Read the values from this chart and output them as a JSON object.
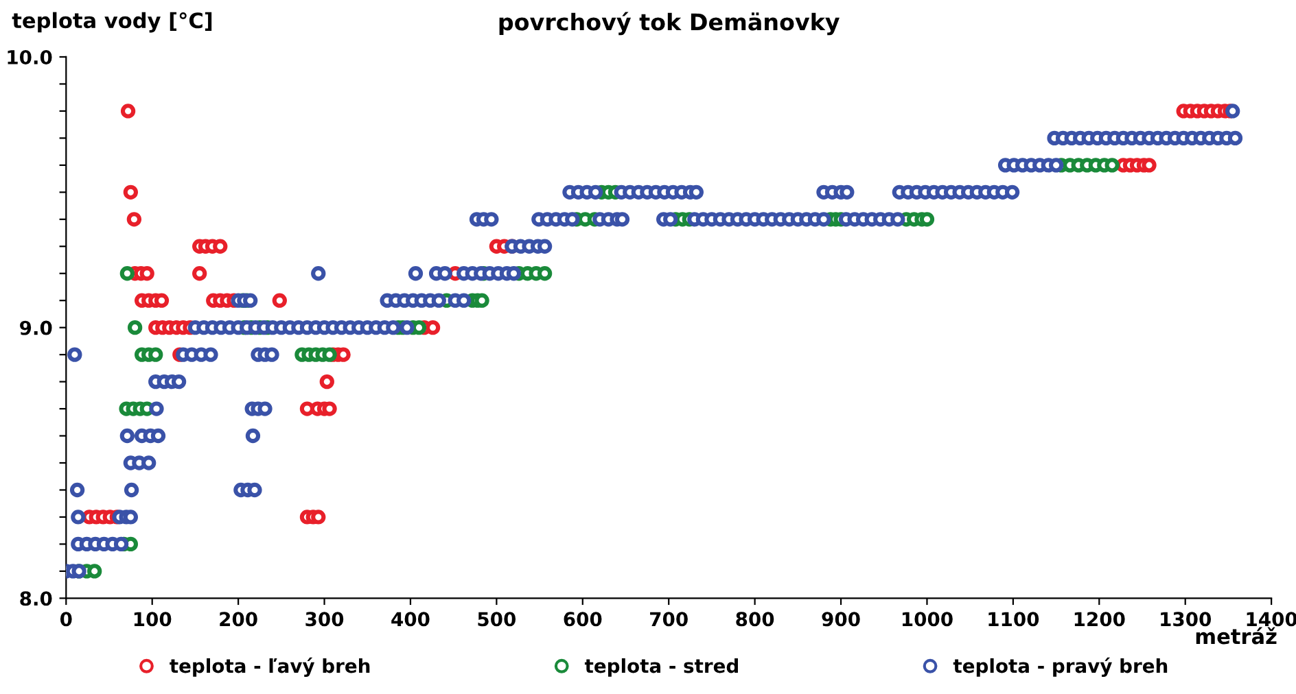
{
  "chart_data": {
    "type": "scatter",
    "title": "povrchový tok Demänovky",
    "xlabel": "metráž",
    "ylabel": "teplota vody [°C]",
    "xlim": [
      0,
      1400
    ],
    "xticks": [
      0,
      100,
      200,
      300,
      400,
      500,
      600,
      700,
      800,
      900,
      1000,
      1100,
      1200,
      1300,
      1400
    ],
    "ylim": [
      8.0,
      10.0
    ],
    "yticks": [
      {
        "value": 8.0,
        "label": "8.0"
      },
      {
        "value": 8.1,
        "label": null
      },
      {
        "value": 8.2,
        "label": null
      },
      {
        "value": 8.3,
        "label": null
      },
      {
        "value": 8.4,
        "label": null
      },
      {
        "value": 8.5,
        "label": null
      },
      {
        "value": 8.6,
        "label": null
      },
      {
        "value": 8.7,
        "label": null
      },
      {
        "value": 8.8,
        "label": null
      },
      {
        "value": 8.9,
        "label": null
      },
      {
        "value": 9.0,
        "label": "9.0"
      },
      {
        "value": 9.1,
        "label": null
      },
      {
        "value": 9.2,
        "label": null
      },
      {
        "value": 9.3,
        "label": null
      },
      {
        "value": 9.4,
        "label": null
      },
      {
        "value": 9.5,
        "label": null
      },
      {
        "value": 9.6,
        "label": null
      },
      {
        "value": 9.7,
        "label": null
      },
      {
        "value": 9.8,
        "label": null
      },
      {
        "value": 9.9,
        "label": null
      },
      {
        "value": 10.0,
        "label": "10.0"
      }
    ],
    "marker": "circle",
    "legend": "bottom",
    "grid": false,
    "series": [
      {
        "name": "teplota - ľavý breh",
        "color": "#e8202a",
        "x": [
          27,
          35,
          43,
          51,
          59,
          280,
          287,
          293,
          280,
          292,
          300,
          306,
          303,
          132,
          310,
          316,
          322,
          104,
          112,
          120,
          128,
          136,
          144,
          416,
          426,
          88,
          96,
          104,
          111,
          171,
          179,
          187,
          195,
          248,
          80,
          87,
          94,
          155,
          452,
          155,
          162,
          170,
          179,
          500,
          509,
          518,
          79,
          75,
          72,
          1298,
          1306,
          1314,
          1322,
          1330,
          1338,
          1346,
          1352,
          1228,
          1236,
          1244,
          1252,
          1258
        ],
        "values": [
          8.3,
          8.3,
          8.3,
          8.3,
          8.3,
          8.3,
          8.3,
          8.3,
          8.7,
          8.7,
          8.7,
          8.7,
          8.8,
          8.9,
          8.9,
          8.9,
          8.9,
          9.0,
          9.0,
          9.0,
          9.0,
          9.0,
          9.0,
          9.0,
          9.0,
          9.1,
          9.1,
          9.1,
          9.1,
          9.1,
          9.1,
          9.1,
          9.1,
          9.1,
          9.2,
          9.2,
          9.2,
          9.2,
          9.2,
          9.3,
          9.3,
          9.3,
          9.3,
          9.3,
          9.3,
          9.3,
          9.4,
          9.5,
          9.8,
          9.8,
          9.8,
          9.8,
          9.8,
          9.8,
          9.8,
          9.8,
          9.8,
          9.6,
          9.6,
          9.6,
          9.6,
          9.6
        ]
      },
      {
        "name": "teplota - stred",
        "color": "#1a8a3a",
        "x": [
          15,
          24,
          33,
          67,
          75,
          70,
          78,
          86,
          94,
          71,
          80,
          88,
          96,
          104,
          205,
          210,
          207,
          215,
          225,
          234,
          274,
          282,
          290,
          298,
          306,
          386,
          391,
          403,
          410,
          442,
          472,
          478,
          483,
          485,
          526,
          536,
          546,
          556,
          593,
          603,
          614,
          708,
          716,
          724,
          888,
          894,
          900,
          976,
          985,
          994,
          1000,
          622,
          630,
          638,
          1156,
          1166,
          1176,
          1186,
          1196,
          1206,
          1215
        ],
        "values": [
          8.1,
          8.1,
          8.1,
          8.2,
          8.2,
          8.7,
          8.7,
          8.7,
          8.7,
          9.2,
          9.0,
          8.9,
          8.9,
          8.9,
          9.1,
          9.1,
          9.0,
          9.0,
          9.0,
          9.0,
          8.9,
          8.9,
          8.9,
          8.9,
          8.9,
          9.0,
          9.0,
          9.0,
          9.0,
          9.1,
          9.1,
          9.1,
          9.1,
          9.2,
          9.2,
          9.2,
          9.2,
          9.2,
          9.4,
          9.4,
          9.4,
          9.4,
          9.4,
          9.4,
          9.4,
          9.4,
          9.4,
          9.4,
          9.4,
          9.4,
          9.4,
          9.5,
          9.5,
          9.5,
          9.6,
          9.6,
          9.6,
          9.6,
          9.6,
          9.6,
          9.6
        ]
      },
      {
        "name": "teplota - pravý breh",
        "color": "#3a52a8",
        "x": [
          0,
          8,
          15,
          10,
          13,
          14,
          14,
          24,
          34,
          44,
          54,
          64,
          62,
          70,
          75,
          71,
          76,
          75,
          85,
          96,
          88,
          98,
          107,
          105,
          104,
          114,
          123,
          131,
          136,
          146,
          157,
          168,
          223,
          231,
          239,
          150,
          160,
          170,
          180,
          190,
          200,
          210,
          220,
          230,
          240,
          250,
          260,
          270,
          280,
          290,
          300,
          310,
          320,
          330,
          340,
          350,
          360,
          370,
          380,
          396,
          200,
          207,
          214,
          373,
          383,
          393,
          403,
          413,
          423,
          433,
          452,
          462,
          293,
          406,
          430,
          440,
          462,
          472,
          482,
          492,
          502,
          512,
          520,
          518,
          528,
          538,
          548,
          556,
          477,
          485,
          494,
          549,
          559,
          569,
          579,
          588,
          620,
          630,
          640,
          646,
          694,
          702,
          730,
          740,
          750,
          760,
          770,
          780,
          790,
          800,
          810,
          820,
          830,
          840,
          850,
          860,
          870,
          880,
          906,
          916,
          926,
          936,
          946,
          956,
          966,
          585,
          595,
          605,
          615,
          645,
          655,
          665,
          675,
          685,
          695,
          705,
          715,
          725,
          732,
          880,
          890,
          900,
          907,
          968,
          978,
          988,
          998,
          1008,
          1018,
          1028,
          1038,
          1048,
          1058,
          1068,
          1078,
          1088,
          1099,
          1091,
          1101,
          1111,
          1121,
          1131,
          1141,
          1150,
          1148,
          1158,
          1168,
          1178,
          1188,
          1198,
          1208,
          1218,
          1228,
          1238,
          1248,
          1258,
          1268,
          1278,
          1288,
          1298,
          1308,
          1318,
          1328,
          1338,
          1348,
          1358,
          1355,
          203,
          211,
          219,
          216,
          223,
          231,
          217
        ],
        "values": [
          8.1,
          8.1,
          8.1,
          8.9,
          8.4,
          8.3,
          8.2,
          8.2,
          8.2,
          8.2,
          8.2,
          8.2,
          8.3,
          8.3,
          8.3,
          8.6,
          8.4,
          8.5,
          8.5,
          8.5,
          8.6,
          8.6,
          8.6,
          8.7,
          8.8,
          8.8,
          8.8,
          8.8,
          8.9,
          8.9,
          8.9,
          8.9,
          8.9,
          8.9,
          8.9,
          9.0,
          9.0,
          9.0,
          9.0,
          9.0,
          9.0,
          9.0,
          9.0,
          9.0,
          9.0,
          9.0,
          9.0,
          9.0,
          9.0,
          9.0,
          9.0,
          9.0,
          9.0,
          9.0,
          9.0,
          9.0,
          9.0,
          9.0,
          9.0,
          9.0,
          9.1,
          9.1,
          9.1,
          9.1,
          9.1,
          9.1,
          9.1,
          9.1,
          9.1,
          9.1,
          9.1,
          9.1,
          9.2,
          9.2,
          9.2,
          9.2,
          9.2,
          9.2,
          9.2,
          9.2,
          9.2,
          9.2,
          9.2,
          9.3,
          9.3,
          9.3,
          9.3,
          9.3,
          9.4,
          9.4,
          9.4,
          9.4,
          9.4,
          9.4,
          9.4,
          9.4,
          9.4,
          9.4,
          9.4,
          9.4,
          9.4,
          9.4,
          9.4,
          9.4,
          9.4,
          9.4,
          9.4,
          9.4,
          9.4,
          9.4,
          9.4,
          9.4,
          9.4,
          9.4,
          9.4,
          9.4,
          9.4,
          9.4,
          9.4,
          9.4,
          9.4,
          9.4,
          9.4,
          9.4,
          9.4,
          9.5,
          9.5,
          9.5,
          9.5,
          9.5,
          9.5,
          9.5,
          9.5,
          9.5,
          9.5,
          9.5,
          9.5,
          9.5,
          9.5,
          9.5,
          9.5,
          9.5,
          9.5,
          9.5,
          9.5,
          9.5,
          9.5,
          9.5,
          9.5,
          9.5,
          9.5,
          9.5,
          9.5,
          9.5,
          9.5,
          9.5,
          9.5,
          9.6,
          9.6,
          9.6,
          9.6,
          9.6,
          9.6,
          9.6,
          9.7,
          9.7,
          9.7,
          9.7,
          9.7,
          9.7,
          9.7,
          9.7,
          9.7,
          9.7,
          9.7,
          9.7,
          9.7,
          9.7,
          9.7,
          9.7,
          9.7,
          9.7,
          9.7,
          9.7,
          9.7,
          9.7,
          9.8,
          8.4,
          8.4,
          8.4,
          8.7,
          8.7,
          8.7,
          8.6
        ]
      }
    ]
  }
}
